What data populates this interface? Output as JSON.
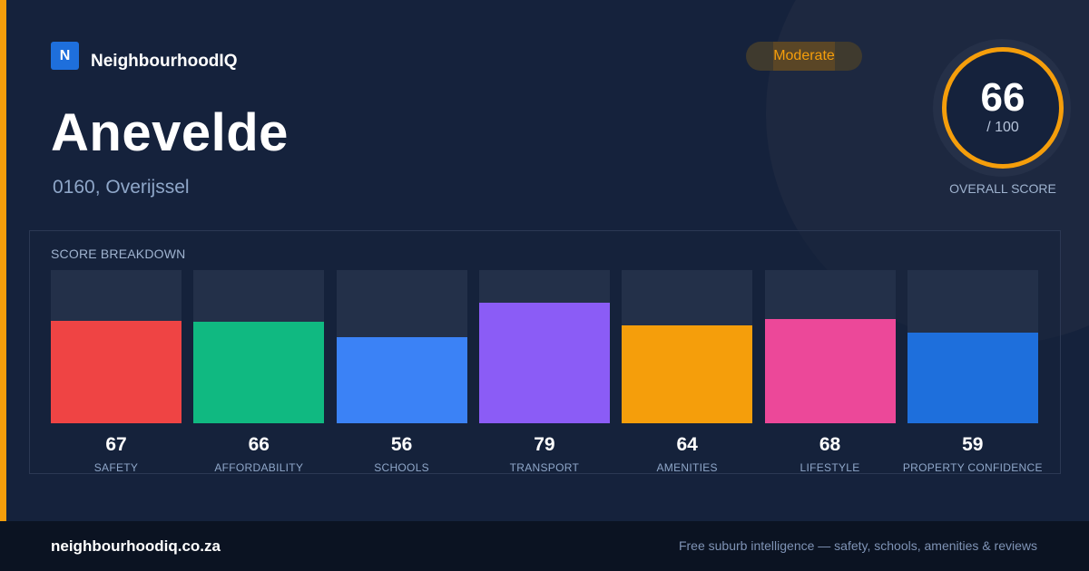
{
  "brand": {
    "logo_letter": "N",
    "name": "NeighbourhoodIQ",
    "color": "#1e6fdc"
  },
  "location": {
    "title": "Anevelde",
    "subtitle": "0160, Overijssel"
  },
  "badge": {
    "label": "Moderate",
    "color": "#f59e0b"
  },
  "overall": {
    "value": "66",
    "max": "/ 100",
    "label": "OVERALL SCORE",
    "ring_color": "#f59e0b"
  },
  "breakdown": {
    "title": "SCORE BREAKDOWN",
    "categories": [
      {
        "label": "SAFETY",
        "value": 67,
        "color": "#ef4444"
      },
      {
        "label": "AFFORDABILITY",
        "value": 66,
        "color": "#10b981"
      },
      {
        "label": "SCHOOLS",
        "value": 56,
        "color": "#3b82f6"
      },
      {
        "label": "TRANSPORT",
        "value": 79,
        "color": "#8b5cf6"
      },
      {
        "label": "AMENITIES",
        "value": 64,
        "color": "#f59e0b"
      },
      {
        "label": "LIFESTYLE",
        "value": 68,
        "color": "#ec4899"
      },
      {
        "label": "PROPERTY CONFIDENCE",
        "value": 59,
        "color": "#1e6fdc"
      }
    ]
  },
  "chart_data": {
    "type": "bar",
    "categories": [
      "SAFETY",
      "AFFORDABILITY",
      "SCHOOLS",
      "TRANSPORT",
      "AMENITIES",
      "LIFESTYLE",
      "PROPERTY CONFIDENCE"
    ],
    "values": [
      67,
      66,
      56,
      79,
      64,
      68,
      59
    ],
    "title": "SCORE BREAKDOWN",
    "ylim": [
      0,
      100
    ]
  },
  "footer": {
    "url": "neighbourhoodiq.co.za",
    "tagline": "Free suburb intelligence — safety, schools, amenities & reviews"
  }
}
